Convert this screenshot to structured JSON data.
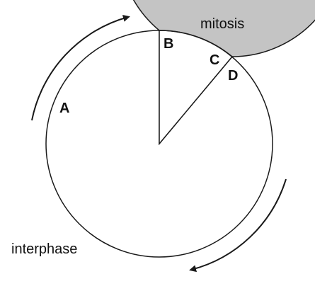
{
  "labels": {
    "a": "A",
    "b": "B",
    "c": "C",
    "d": "D",
    "mitosis": "mitosis",
    "interphase": "interphase"
  },
  "colors": {
    "interphase_fill": "#c4c4c4",
    "mitosis_fill": "#ffffff",
    "stroke": "#1a1a1a"
  },
  "icons": {
    "upper_arrow": "curved-arrow-clockwise-icon",
    "lower_arrow": "curved-arrow-clockwise-icon"
  }
}
